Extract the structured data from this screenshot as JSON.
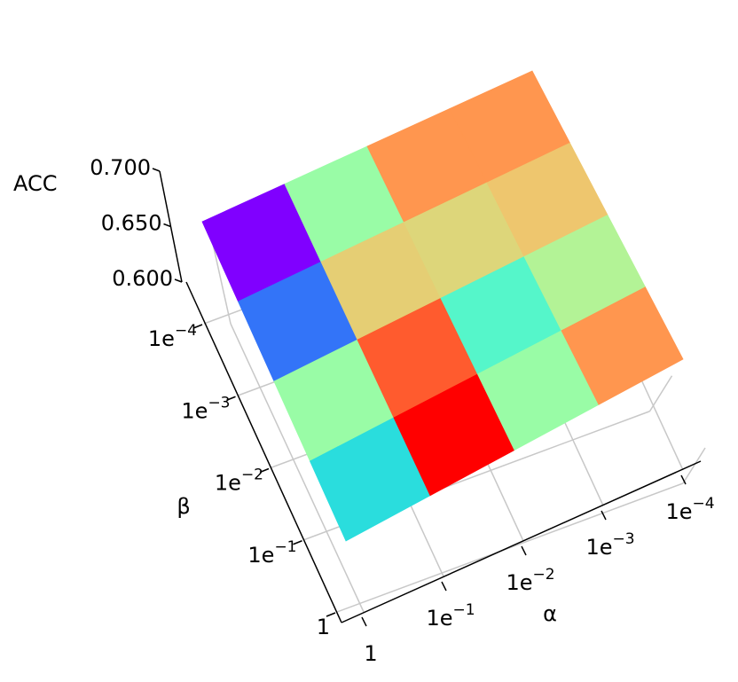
{
  "chart_data": {
    "type": "surface",
    "z_label": "ACC",
    "x_label": "α",
    "y_label": "β",
    "x_ticks": [
      "1",
      "1e−1",
      "1e−2",
      "1e−3",
      "1e−4"
    ],
    "y_ticks": [
      "1e−4",
      "1e−3",
      "1e−2",
      "1e−1",
      "1"
    ],
    "zlim": [
      0.6,
      0.7
    ],
    "zticks": [
      {
        "value": 0.6,
        "label": "0.600"
      },
      {
        "value": 0.65,
        "label": "0.650"
      },
      {
        "value": 0.7,
        "label": "0.700"
      }
    ],
    "colormap": "rainbow",
    "values": [
      [
        0.62,
        0.653,
        0.668,
        0.668
      ],
      [
        0.629,
        0.662,
        0.661,
        0.663
      ],
      [
        0.653,
        0.673,
        0.645,
        0.656
      ],
      [
        0.64,
        0.68,
        0.653,
        0.668
      ]
    ]
  }
}
